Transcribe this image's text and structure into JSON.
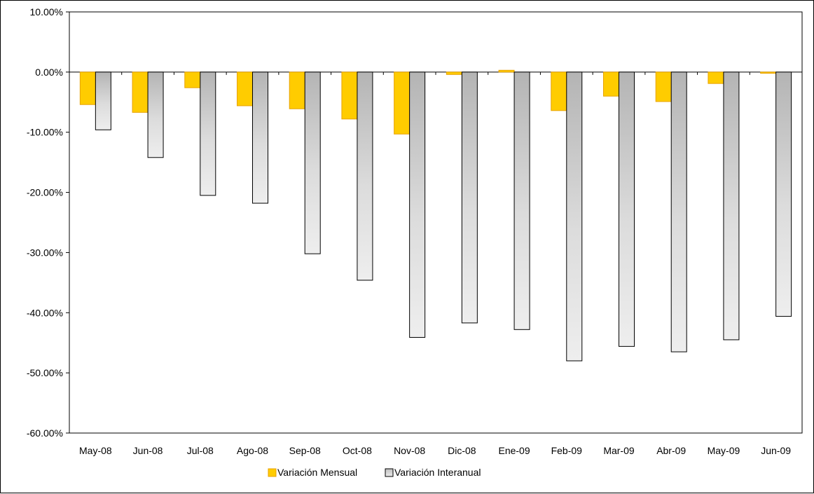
{
  "chart_data": {
    "type": "bar",
    "categories": [
      "May-08",
      "Jun-08",
      "Jul-08",
      "Ago-08",
      "Sep-08",
      "Oct-08",
      "Nov-08",
      "Dic-08",
      "Ene-09",
      "Feb-09",
      "Mar-09",
      "Abr-09",
      "May-09",
      "Jun-09"
    ],
    "series": [
      {
        "name": "Variación Mensual",
        "values": [
          -5.4,
          -6.7,
          -2.6,
          -5.6,
          -6.1,
          -7.8,
          -10.3,
          -0.4,
          0.3,
          -6.4,
          -4.0,
          -4.9,
          -1.9,
          -0.2
        ],
        "color": "#FFCC00",
        "stroke": "#E8A200",
        "style": "solid"
      },
      {
        "name": "Variación Interanual",
        "values": [
          -9.6,
          -14.2,
          -20.5,
          -21.8,
          -30.2,
          -34.6,
          -44.1,
          -41.7,
          -42.8,
          -48.0,
          -45.6,
          -46.5,
          -44.5,
          -40.6
        ],
        "color": "#C8C8C8",
        "stroke": "#000000",
        "style": "gradient"
      }
    ],
    "y_ticks": [
      "10.00%",
      "0.00%",
      "-10.00%",
      "-20.00%",
      "-30.00%",
      "-40.00%",
      "-50.00%",
      "-60.00%"
    ],
    "y_tick_values": [
      10,
      0,
      -10,
      -20,
      -30,
      -40,
      -50,
      -60
    ],
    "ylim": [
      -60,
      10
    ],
    "grid": false,
    "legend": "bottom-center",
    "title": "",
    "xlabel": "",
    "ylabel": ""
  }
}
